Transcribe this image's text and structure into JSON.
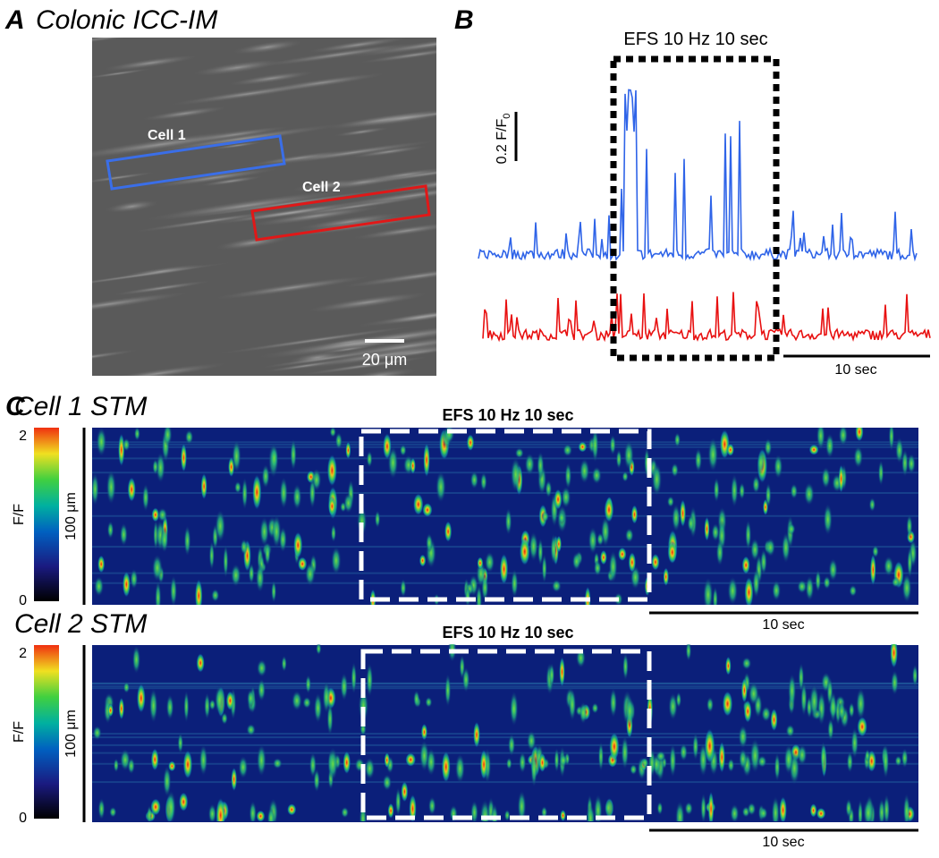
{
  "panel_a": {
    "label": "A",
    "title": "Colonic ICC-IM",
    "roi_1": "Cell 1",
    "roi_2": "Cell 2",
    "scale_bar": "20 μm"
  },
  "panel_b": {
    "label": "B",
    "stimulus": "EFS 10 Hz 10 sec",
    "y_scale": "0.2 F/F",
    "y_scale_sub": "0",
    "x_scale": "10 sec"
  },
  "panel_c": {
    "label": "C",
    "maps": [
      {
        "title": "Cell 1 STM",
        "stimulus": "EFS 10 Hz 10 sec",
        "colorbar_max": "2",
        "colorbar_label": "F/F",
        "colorbar_min": "0",
        "y_scale": "100 μm",
        "x_scale": "10 sec"
      },
      {
        "title": "Cell 2 STM",
        "stimulus": "EFS 10 Hz 10 sec",
        "colorbar_max": "2",
        "colorbar_label": "F/F",
        "colorbar_min": "0",
        "y_scale": "100 μm",
        "x_scale": "10 sec"
      }
    ]
  }
}
